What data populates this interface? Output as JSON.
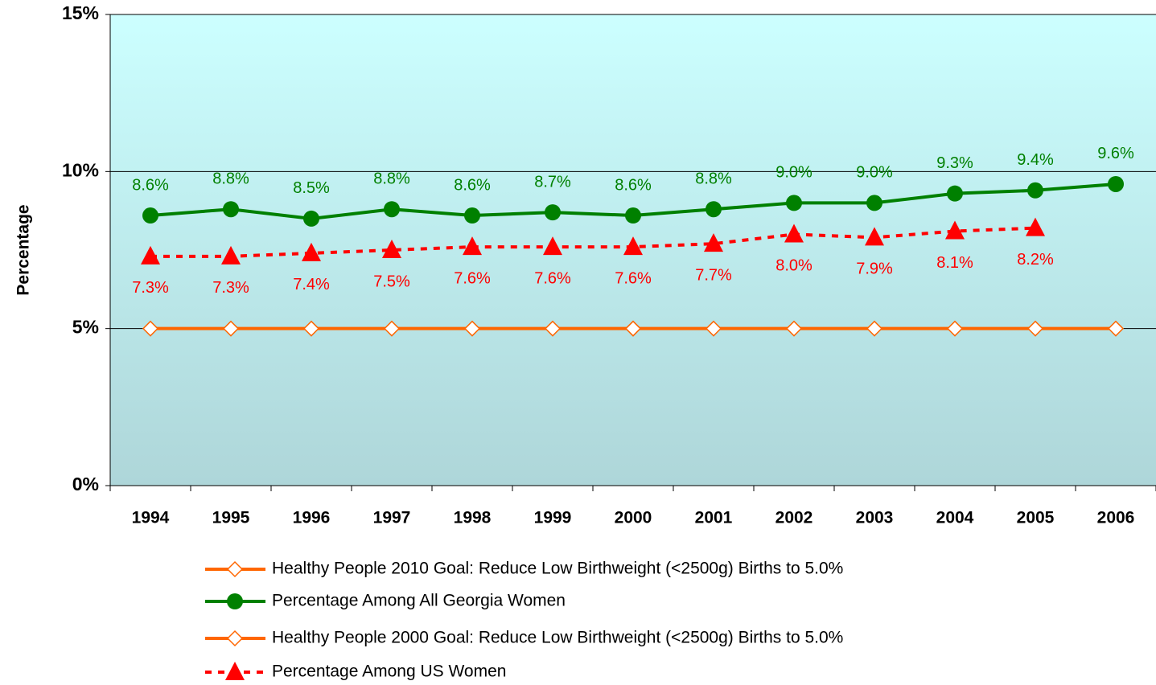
{
  "chart_data": {
    "type": "line",
    "ylabel": "Percentage",
    "categories": [
      "1994",
      "1995",
      "1996",
      "1997",
      "1998",
      "1999",
      "2000",
      "2001",
      "2002",
      "2003",
      "2004",
      "2005",
      "2006"
    ],
    "ylim": [
      0,
      15
    ],
    "yticks": [
      {
        "value": 0,
        "label": "0%"
      },
      {
        "value": 5,
        "label": "5%"
      },
      {
        "value": 10,
        "label": "10%"
      },
      {
        "value": 15,
        "label": "15%"
      }
    ],
    "grid": true,
    "series": [
      {
        "name": "Healthy People 2010 Goal:  Reduce Low Birthweight (<2500g) Births to 5.0%",
        "color": "#ff6600",
        "marker": "diamond",
        "line_style": "solid",
        "values": [
          null,
          null,
          null,
          null,
          null,
          null,
          5,
          5,
          5,
          5,
          5,
          5,
          5
        ]
      },
      {
        "name": "Percentage Among All Georgia Women",
        "color": "#008000",
        "marker": "circle",
        "line_style": "solid",
        "label_position": "above",
        "values": [
          8.6,
          8.8,
          8.5,
          8.8,
          8.6,
          8.7,
          8.6,
          8.8,
          9.0,
          9.0,
          9.3,
          9.4,
          9.6
        ],
        "value_labels": [
          "8.6%",
          "8.8%",
          "8.5%",
          "8.8%",
          "8.6%",
          "8.7%",
          "8.6%",
          "8.8%",
          "9.0%",
          "9.0%",
          "9.3%",
          "9.4%",
          "9.6%"
        ]
      },
      {
        "name": "Healthy People 2000 Goal:  Reduce Low Birthweight (<2500g) Births to 5.0%",
        "color": "#ff6600",
        "marker": "diamond",
        "line_style": "solid",
        "values": [
          5,
          5,
          5,
          5,
          5,
          5,
          5,
          null,
          null,
          null,
          null,
          null,
          null
        ]
      },
      {
        "name": "Percentage Among US Women",
        "color": "#ff0000",
        "marker": "triangle",
        "line_style": "dashed",
        "label_position": "below",
        "values": [
          7.3,
          7.3,
          7.4,
          7.5,
          7.6,
          7.6,
          7.6,
          7.7,
          8.0,
          7.9,
          8.1,
          8.2,
          null
        ],
        "value_labels": [
          "7.3%",
          "7.3%",
          "7.4%",
          "7.5%",
          "7.6%",
          "7.6%",
          "7.6%",
          "7.7%",
          "8.0%",
          "7.9%",
          "8.1%",
          "8.2%",
          null
        ]
      }
    ]
  }
}
